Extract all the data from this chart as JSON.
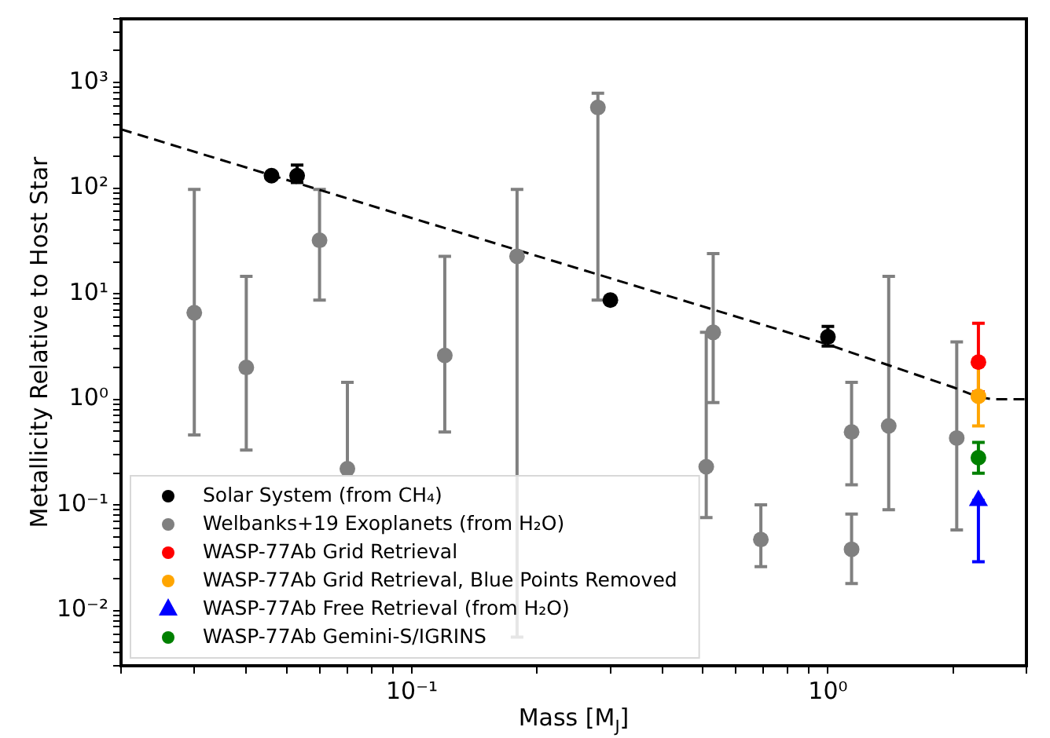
{
  "chart_data": {
    "type": "scatter",
    "xlabel": "Mass [M$_{J}$]",
    "ylabel": "Metallicity Relative to Host Star",
    "log": "xy",
    "grid": false,
    "legend": "bottom left",
    "marker": "circle",
    "xlim": [
      0.02,
      3
    ],
    "ylim": [
      0.003,
      4000
    ],
    "xticks": [
      {
        "value": 0.02,
        "label": null
      },
      {
        "value": 0.03,
        "label": null
      },
      {
        "value": 0.04,
        "label": null
      },
      {
        "value": 0.05,
        "label": null
      },
      {
        "value": 0.06,
        "label": null
      },
      {
        "value": 0.07,
        "label": null
      },
      {
        "value": 0.08,
        "label": null
      },
      {
        "value": 0.09,
        "label": null
      },
      {
        "value": 0.1,
        "label": "10⁻¹"
      },
      {
        "value": 0.2,
        "label": null
      },
      {
        "value": 0.3,
        "label": null
      },
      {
        "value": 0.4,
        "label": null
      },
      {
        "value": 0.5,
        "label": null
      },
      {
        "value": 0.6,
        "label": null
      },
      {
        "value": 0.7,
        "label": null
      },
      {
        "value": 0.8,
        "label": null
      },
      {
        "value": 0.9,
        "label": null
      },
      {
        "value": 1,
        "label": "10⁰"
      },
      {
        "value": 2,
        "label": null
      },
      {
        "value": 3,
        "label": null
      }
    ],
    "yticks": [
      {
        "value": 0.003,
        "label": null
      },
      {
        "value": 0.004,
        "label": null
      },
      {
        "value": 0.005,
        "label": null
      },
      {
        "value": 0.006,
        "label": null
      },
      {
        "value": 0.007,
        "label": null
      },
      {
        "value": 0.008,
        "label": null
      },
      {
        "value": 0.009,
        "label": null
      },
      {
        "value": 0.01,
        "label": "10⁻²"
      },
      {
        "value": 0.02,
        "label": null
      },
      {
        "value": 0.03,
        "label": null
      },
      {
        "value": 0.04,
        "label": null
      },
      {
        "value": 0.05,
        "label": null
      },
      {
        "value": 0.06,
        "label": null
      },
      {
        "value": 0.07,
        "label": null
      },
      {
        "value": 0.08,
        "label": null
      },
      {
        "value": 0.09,
        "label": null
      },
      {
        "value": 0.1,
        "label": "10⁻¹"
      },
      {
        "value": 0.2,
        "label": null
      },
      {
        "value": 0.3,
        "label": null
      },
      {
        "value": 0.4,
        "label": null
      },
      {
        "value": 0.5,
        "label": null
      },
      {
        "value": 0.6,
        "label": null
      },
      {
        "value": 0.7,
        "label": null
      },
      {
        "value": 0.8,
        "label": null
      },
      {
        "value": 0.9,
        "label": null
      },
      {
        "value": 1,
        "label": "10⁰"
      },
      {
        "value": 2,
        "label": null
      },
      {
        "value": 3,
        "label": null
      },
      {
        "value": 4,
        "label": null
      },
      {
        "value": 5,
        "label": null
      },
      {
        "value": 6,
        "label": null
      },
      {
        "value": 7,
        "label": null
      },
      {
        "value": 8,
        "label": null
      },
      {
        "value": 9,
        "label": null
      },
      {
        "value": 10,
        "label": "10¹"
      },
      {
        "value": 20,
        "label": null
      },
      {
        "value": 30,
        "label": null
      },
      {
        "value": 40,
        "label": null
      },
      {
        "value": 50,
        "label": null
      },
      {
        "value": 60,
        "label": null
      },
      {
        "value": 70,
        "label": null
      },
      {
        "value": 80,
        "label": null
      },
      {
        "value": 90,
        "label": null
      },
      {
        "value": 100,
        "label": "10²"
      },
      {
        "value": 200,
        "label": null
      },
      {
        "value": 300,
        "label": null
      },
      {
        "value": 400,
        "label": null
      },
      {
        "value": 500,
        "label": null
      },
      {
        "value": 600,
        "label": null
      },
      {
        "value": 700,
        "label": null
      },
      {
        "value": 800,
        "label": null
      },
      {
        "value": 900,
        "label": null
      },
      {
        "value": 1000,
        "label": "10³"
      },
      {
        "value": 2000,
        "label": null
      },
      {
        "value": 3000,
        "label": null
      },
      {
        "value": 4000,
        "label": null
      }
    ],
    "series": [
      {
        "name": "Solar System (from CH₄)",
        "color": "#000000",
        "x": [
          0.046,
          0.053,
          0.3,
          1.0
        ],
        "values": [
          131,
          131,
          8.7,
          3.9
        ],
        "errors": [
          null,
          [
            113,
            165
          ],
          null,
          [
            3.2,
            4.9
          ]
        ]
      },
      {
        "name": "Welbanks+19 Exoplanets (from H₂O)",
        "color": "#808080",
        "x": [
          0.03,
          0.04,
          0.06,
          0.07,
          0.12,
          0.179,
          0.28,
          0.51,
          0.53,
          0.69,
          1.14,
          1.14,
          1.4,
          2.04
        ],
        "values": [
          6.6,
          2.0,
          32,
          0.22,
          2.6,
          22.6,
          580,
          0.23,
          4.3,
          0.047,
          0.49,
          0.038,
          0.56,
          0.43
        ],
        "errors": [
          [
            0.46,
            97
          ],
          [
            0.33,
            14.6
          ],
          [
            8.7,
            97
          ],
          [
            0.22,
            1.45
          ],
          [
            0.49,
            22.6
          ],
          [
            0.0056,
            97
          ],
          [
            8.7,
            790
          ],
          [
            0.076,
            4.3
          ],
          [
            0.93,
            24
          ],
          [
            0.026,
            0.1
          ],
          [
            0.155,
            1.45
          ],
          [
            0.018,
            0.082
          ],
          [
            0.09,
            14.6
          ],
          [
            0.058,
            3.5
          ]
        ]
      },
      {
        "name": "WASP-77Ab Grid Retrieval",
        "color": "#ff0000",
        "x": [
          2.3
        ],
        "values": [
          2.25
        ],
        "errors": [
          [
            1.18,
            5.25
          ]
        ]
      },
      {
        "name": "WASP-77Ab Grid Retrieval, Blue Points Removed",
        "color": "#ffa500",
        "x": [
          2.3
        ],
        "values": [
          1.07
        ],
        "errors": [
          [
            0.56,
            2.4
          ]
        ]
      },
      {
        "name": "WASP-77Ab Free Retrieval (from H₂O)",
        "color": "#0000ff",
        "x": [
          2.3
        ],
        "values": [
          0.11
        ],
        "errors": [
          [
            0.029,
            0.11
          ]
        ],
        "marker": "triangle"
      },
      {
        "name": "WASP-77Ab Gemini-S/IGRINS",
        "color": "#008000",
        "x": [
          2.3
        ],
        "values": [
          0.28
        ],
        "errors": [
          [
            0.2,
            0.39
          ]
        ]
      },
      {
        "type": "line",
        "color": "#000000",
        "line_style": "dashed",
        "marker": "none",
        "x": [
          0.02,
          0.1,
          0.3,
          1,
          2,
          2.3,
          2.5,
          3
        ],
        "values": [
          360,
          52,
          14,
          3.3,
          1.3,
          1.05,
          1.0,
          1.0
        ]
      }
    ]
  }
}
